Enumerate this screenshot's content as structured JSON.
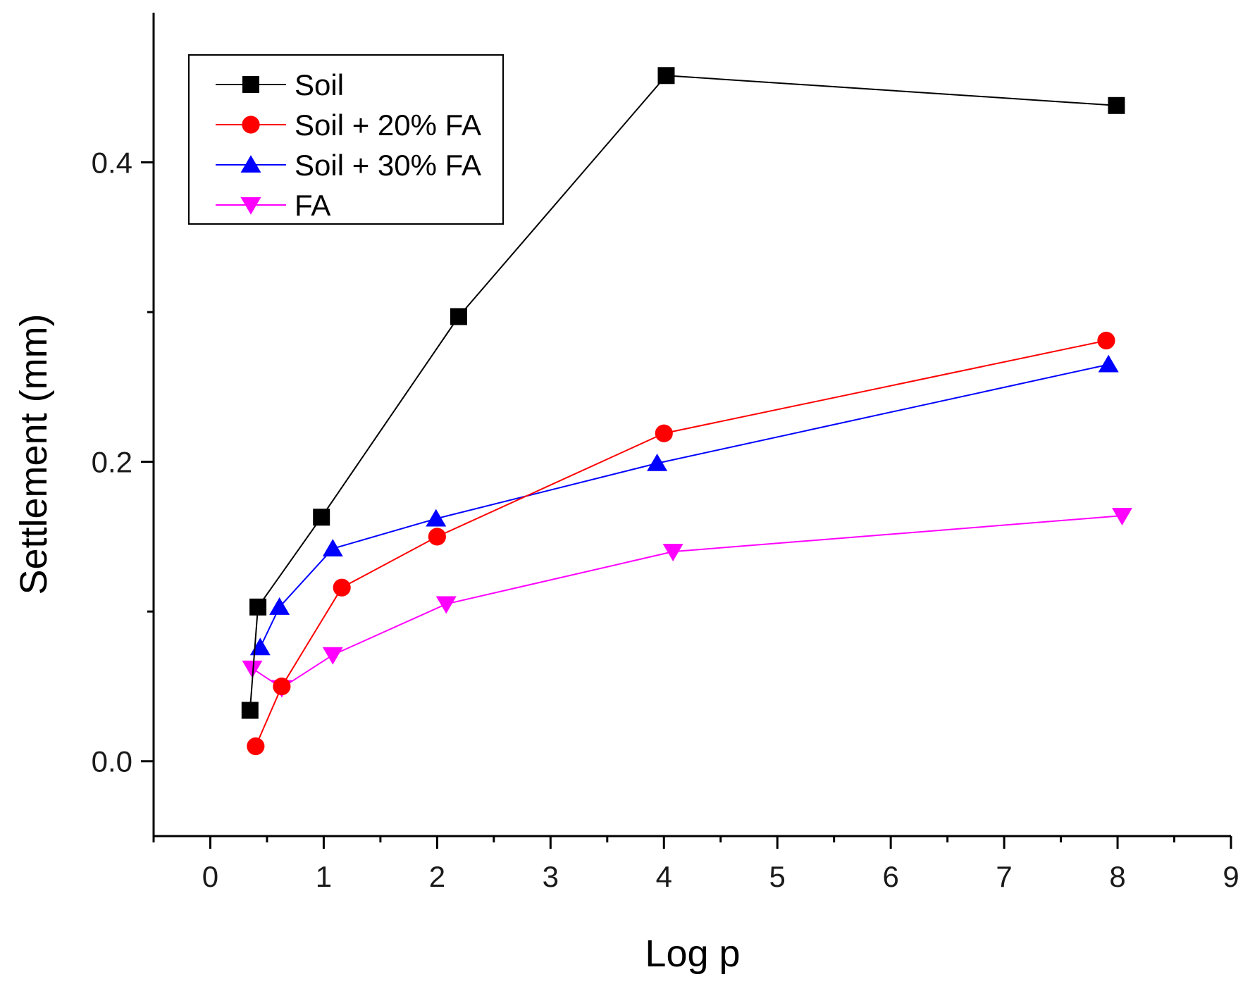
{
  "chart_data": {
    "type": "line",
    "title": "",
    "xlabel": "Log p",
    "ylabel": "Settlement (mm)",
    "xlim": [
      -0.5,
      9
    ],
    "ylim": [
      -0.05,
      0.5
    ],
    "x_ticks": [
      0,
      1,
      2,
      3,
      4,
      5,
      6,
      7,
      8,
      9
    ],
    "x_tick_labels": [
      "0",
      "1",
      "2",
      "3",
      "4",
      "5",
      "6",
      "7",
      "8",
      "9"
    ],
    "y_ticks": [
      0.0,
      0.2,
      0.4
    ],
    "y_tick_labels": [
      "0.0",
      "0.2",
      "0.4"
    ],
    "grid": false,
    "legend_position": "top-left",
    "series": [
      {
        "name": "Soil",
        "color": "#000000",
        "marker": "square",
        "x": [
          0.35,
          0.42,
          0.98,
          2.19,
          4.02,
          7.99
        ],
        "y": [
          0.034,
          0.103,
          0.163,
          0.297,
          0.458,
          0.438
        ]
      },
      {
        "name": "Soil + 20% FA",
        "color": "#ff0000",
        "marker": "circle",
        "x": [
          0.4,
          0.63,
          1.16,
          2.0,
          4.0,
          7.9
        ],
        "y": [
          0.01,
          0.05,
          0.116,
          0.15,
          0.219,
          0.281
        ]
      },
      {
        "name": "Soil + 30% FA",
        "color": "#0000ff",
        "marker": "triangle-up",
        "x": [
          0.44,
          0.61,
          1.08,
          1.99,
          3.94,
          7.92
        ],
        "y": [
          0.076,
          0.103,
          0.142,
          0.162,
          0.199,
          0.265
        ]
      },
      {
        "name": "FA",
        "color": "#ff00ff",
        "marker": "triangle-down",
        "x": [
          0.37,
          0.63,
          1.08,
          2.08,
          4.08,
          8.04
        ],
        "y": [
          0.062,
          0.049,
          0.071,
          0.105,
          0.14,
          0.164
        ]
      }
    ]
  }
}
